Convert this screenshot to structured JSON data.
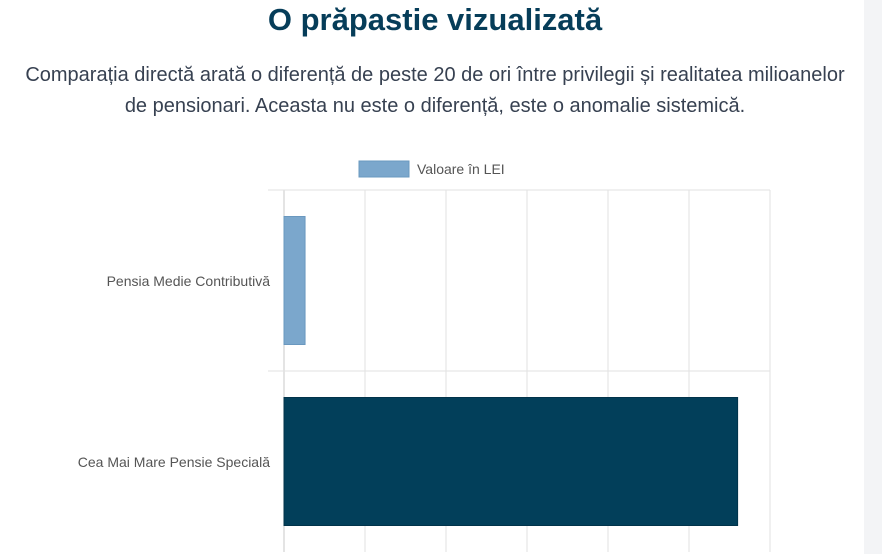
{
  "header": {
    "title": "O prăpastie vizualizată",
    "subtitle": "Comparația directă arată o diferență de peste 20 de ori între privilegii și realitatea milioanelor de pensionari. Aceasta nu este o diferență, este o anomalie sistemică."
  },
  "chart_data": {
    "type": "bar",
    "orientation": "horizontal",
    "categories": [
      "Pensia Medie Contributivă",
      "Cea Mai Mare Pensie Specială"
    ],
    "series": [
      {
        "name": "Valoare în LEI",
        "values": [
          2600,
          56000
        ],
        "colors": [
          "#7ba7cc",
          "#023f5a"
        ]
      }
    ],
    "legend_position": "top",
    "grid": true
  }
}
